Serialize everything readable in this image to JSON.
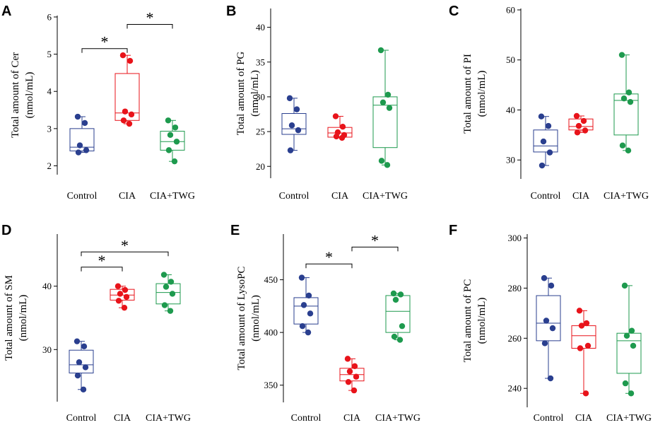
{
  "figure": {
    "categories": [
      "Control",
      "CIA",
      "CIA+TWG"
    ],
    "colors": {
      "Control": "#2a3f8f",
      "CIA": "#e8131a",
      "CIA+TWG": "#1e9a4e"
    }
  },
  "chart_data": [
    {
      "type": "box",
      "panel": "A",
      "ylabel_line1": "Total amount of Cer",
      "ylabel_line2": "(nmol/mL)",
      "ylim": [
        1.8,
        6.0
      ],
      "yticks": [
        "2",
        "3",
        "4",
        "5",
        "6"
      ],
      "categories": [
        "Control",
        "CIA",
        "CIA+TWG"
      ],
      "series": [
        {
          "name": "Control",
          "points": [
            3.32,
            3.15,
            2.55,
            2.42,
            2.36
          ],
          "box": [
            2.4,
            2.5,
            3.0
          ],
          "whisker": [
            2.36,
            3.32
          ]
        },
        {
          "name": "CIA",
          "points": [
            4.97,
            4.82,
            3.46,
            3.38,
            3.22,
            3.13
          ],
          "box": [
            3.22,
            3.42,
            4.48
          ],
          "whisker": [
            3.13,
            4.97
          ]
        },
        {
          "name": "CIA+TWG",
          "points": [
            3.22,
            3.03,
            2.83,
            2.65,
            2.42,
            2.12
          ],
          "box": [
            2.42,
            2.65,
            2.93
          ],
          "whisker": [
            2.12,
            3.22
          ]
        }
      ],
      "significance": [
        {
          "groups": [
            "Control",
            "CIA"
          ],
          "label": "*",
          "y": 5.15
        },
        {
          "groups": [
            "CIA",
            "CIA+TWG"
          ],
          "label": "*",
          "y": 5.8
        }
      ]
    },
    {
      "type": "box",
      "panel": "B",
      "ylabel_line1": "Total amount of PG",
      "ylabel_line2": "(nmol/mL)",
      "ylim": [
        18.5,
        42.5
      ],
      "yticks": [
        "20",
        "25",
        "30",
        "35",
        "40"
      ],
      "categories": [
        "Control",
        "CIA",
        "CIA+TWG"
      ],
      "series": [
        {
          "name": "Control",
          "points": [
            29.8,
            28.2,
            25.9,
            25.2,
            22.3
          ],
          "box": [
            24.6,
            25.4,
            27.6
          ],
          "whisker": [
            22.3,
            29.8
          ]
        },
        {
          "name": "CIA",
          "points": [
            27.2,
            25.7,
            24.9,
            24.5,
            24.3,
            24.1
          ],
          "box": [
            24.2,
            24.8,
            25.6
          ],
          "whisker": [
            24.1,
            27.2
          ]
        },
        {
          "name": "CIA+TWG",
          "points": [
            36.7,
            30.3,
            29.2,
            28.4,
            20.8,
            20.2
          ],
          "box": [
            22.7,
            28.8,
            30.0
          ],
          "whisker": [
            20.2,
            36.7
          ]
        }
      ],
      "significance": []
    },
    {
      "type": "box",
      "panel": "C",
      "ylabel_line1": "Total amount of PI",
      "ylabel_line2": "(nmol/mL)",
      "ylim": [
        26.5,
        60.0
      ],
      "yticks": [
        "30",
        "40",
        "50",
        "60"
      ],
      "categories": [
        "Control",
        "CIA",
        "CIA+TWG"
      ],
      "series": [
        {
          "name": "Control",
          "points": [
            38.7,
            36.8,
            33.7,
            31.5,
            28.9
          ],
          "box": [
            31.6,
            32.8,
            36.0
          ],
          "whisker": [
            28.9,
            38.7
          ]
        },
        {
          "name": "CIA",
          "points": [
            38.8,
            37.8,
            36.8,
            35.9,
            35.5
          ],
          "box": [
            36.0,
            36.7,
            38.2
          ],
          "whisker": [
            35.5,
            38.8
          ]
        },
        {
          "name": "CIA+TWG",
          "points": [
            51.0,
            43.5,
            42.3,
            41.6,
            32.9,
            31.9
          ],
          "box": [
            35.0,
            41.9,
            43.2
          ],
          "whisker": [
            31.9,
            51.0
          ]
        }
      ],
      "significance": []
    },
    {
      "type": "box",
      "panel": "D",
      "ylabel_line1": "Total amount of SM",
      "ylabel_line2": "(nmol/mL)",
      "ylim": [
        22.0,
        48.0
      ],
      "yticks": [
        "30",
        "40"
      ],
      "categories": [
        "Control",
        "CIA",
        "CIA+TWG"
      ],
      "series": [
        {
          "name": "Control",
          "points": [
            31.3,
            30.5,
            28.0,
            27.2,
            25.9,
            23.7
          ],
          "box": [
            26.3,
            27.6,
            29.9
          ],
          "whisker": [
            23.7,
            31.3
          ]
        },
        {
          "name": "CIA",
          "points": [
            40.0,
            39.4,
            38.8,
            38.3,
            37.7,
            36.6
          ],
          "box": [
            37.8,
            38.6,
            39.5
          ],
          "whisker": [
            36.6,
            40.0
          ]
        },
        {
          "name": "CIA+TWG",
          "points": [
            41.8,
            40.7,
            39.9,
            38.8,
            37.0,
            36.1
          ],
          "box": [
            37.2,
            39.0,
            40.4
          ],
          "whisker": [
            36.1,
            41.8
          ]
        }
      ],
      "significance": [
        {
          "groups": [
            "Control",
            "CIA"
          ],
          "label": "*",
          "y": 43.0
        },
        {
          "groups": [
            "Control",
            "CIA+TWG"
          ],
          "label": "*",
          "y": 45.4
        }
      ]
    },
    {
      "type": "box",
      "panel": "E",
      "ylabel_line1": "Total amount of LysoPC",
      "ylabel_line2": "(nmol/mL)",
      "ylim": [
        335.0,
        492.0
      ],
      "yticks": [
        "350",
        "400",
        "450"
      ],
      "categories": [
        "Control",
        "CIA",
        "CIA+TWG"
      ],
      "series": [
        {
          "name": "Control",
          "points": [
            452.0,
            435.0,
            426.0,
            418.0,
            406.0,
            400.0
          ],
          "box": [
            408.0,
            425.0,
            433.0
          ],
          "whisker": [
            400.0,
            452.0
          ]
        },
        {
          "name": "CIA",
          "points": [
            375.0,
            368.0,
            363.0,
            358.0,
            353.0,
            345.0
          ],
          "box": [
            354.0,
            360.0,
            366.0
          ],
          "whisker": [
            345.0,
            375.0
          ]
        },
        {
          "name": "CIA+TWG",
          "points": [
            437.0,
            436.0,
            431.0,
            406.0,
            396.0,
            393.0
          ],
          "box": [
            400.0,
            420.0,
            435.0
          ],
          "whisker": [
            393.0,
            437.0
          ]
        }
      ],
      "significance": [
        {
          "groups": [
            "Control",
            "CIA"
          ],
          "label": "*",
          "y": 465.0
        },
        {
          "groups": [
            "CIA",
            "CIA+TWG"
          ],
          "label": "*",
          "y": 481.0
        }
      ]
    },
    {
      "type": "box",
      "panel": "F",
      "ylabel_line1": "Total amount of PC",
      "ylabel_line2": "(nmol/mL)",
      "ylim": [
        233.0,
        301.0
      ],
      "yticks": [
        "240",
        "260",
        "280",
        "300"
      ],
      "categories": [
        "Control",
        "CIA",
        "CIA+TWG"
      ],
      "series": [
        {
          "name": "Control",
          "points": [
            284.0,
            281.0,
            267.0,
            264.0,
            258.0,
            244.0
          ],
          "box": [
            259.0,
            266.0,
            277.0
          ],
          "whisker": [
            244.0,
            284.0
          ]
        },
        {
          "name": "CIA",
          "points": [
            271.0,
            266.0,
            265.0,
            257.0,
            256.0,
            238.0
          ],
          "box": [
            256.0,
            261.0,
            265.0
          ],
          "whisker": [
            238.0,
            271.0
          ]
        },
        {
          "name": "CIA+TWG",
          "points": [
            281.0,
            263.0,
            261.0,
            257.0,
            242.0,
            238.0
          ],
          "box": [
            246.0,
            259.0,
            262.0
          ],
          "whisker": [
            238.0,
            281.0
          ]
        }
      ],
      "significance": []
    }
  ]
}
